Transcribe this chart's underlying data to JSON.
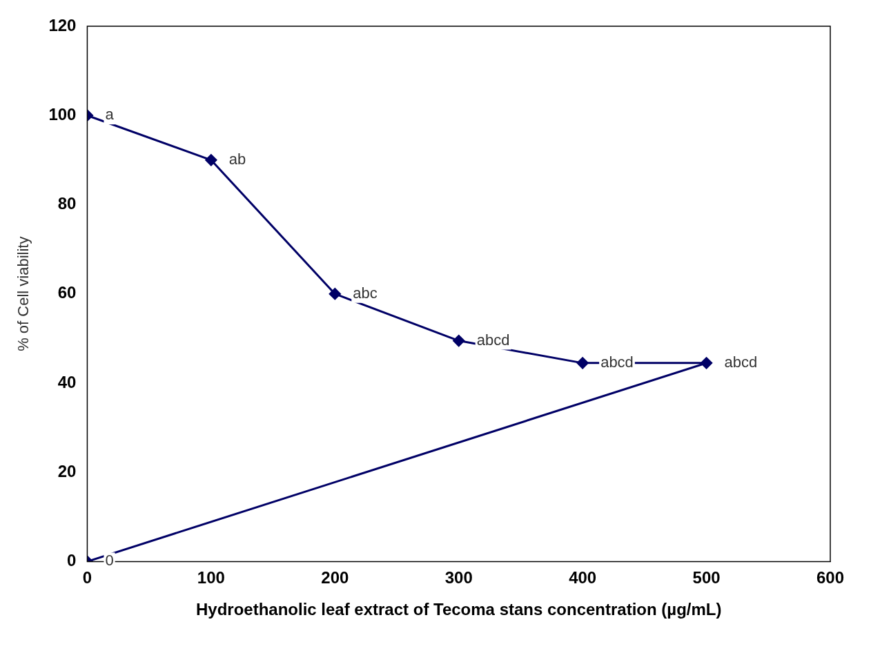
{
  "chart_data": {
    "type": "line",
    "xlabel": "Hydroethanolic leaf extract of Tecoma stans concentration (µg/mL)",
    "ylabel": "% of Cell viability",
    "xlim": [
      0,
      600
    ],
    "xticks": [
      0,
      100,
      200,
      300,
      400,
      500,
      600
    ],
    "ylim": [
      0,
      120
    ],
    "yticks": [
      0,
      20,
      40,
      60,
      80,
      100,
      120
    ],
    "grid": false,
    "legend": false,
    "marker": "diamond",
    "line_style": "solid",
    "series": [
      {
        "color": "#000066",
        "x": [
          0,
          100,
          200,
          300,
          400,
          500,
          0
        ],
        "values": [
          100,
          90,
          60,
          49.5,
          44.5,
          44.5,
          0
        ],
        "value_labels": [
          "a",
          "ab",
          "abc",
          "abcd",
          "abcd",
          "abcd",
          "0"
        ]
      }
    ]
  }
}
